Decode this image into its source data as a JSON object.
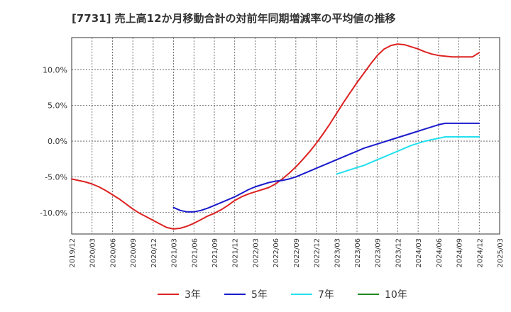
{
  "chart_data": {
    "type": "line",
    "title": "[7731]  売上高12か月移動合計の対前年同期増減率の平均値の推移",
    "xlabel": "",
    "ylabel": "",
    "x_ticks": [
      "2019/12",
      "2020/03",
      "2020/06",
      "2020/09",
      "2020/12",
      "2021/03",
      "2021/06",
      "2021/09",
      "2021/12",
      "2022/03",
      "2022/06",
      "2022/09",
      "2022/12",
      "2023/03",
      "2023/06",
      "2023/09",
      "2023/12",
      "2024/03",
      "2024/06",
      "2024/09",
      "2024/12",
      "2025/03"
    ],
    "y_ticks": [
      -10,
      -5,
      0,
      5,
      10
    ],
    "y_tick_labels": [
      "-10.0%",
      "-5.0%",
      "0.0%",
      "5.0%",
      "10.0%"
    ],
    "ylim": [
      -13,
      14.5
    ],
    "grid": true,
    "legend_position": "bottom",
    "series": [
      {
        "name": "3年",
        "color": "#dd2222",
        "x": [
          "2019/12",
          "2020/01",
          "2020/02",
          "2020/03",
          "2020/04",
          "2020/05",
          "2020/06",
          "2020/07",
          "2020/08",
          "2020/09",
          "2020/10",
          "2020/11",
          "2020/12",
          "2021/01",
          "2021/02",
          "2021/03",
          "2021/04",
          "2021/05",
          "2021/06",
          "2021/07",
          "2021/08",
          "2021/09",
          "2021/10",
          "2021/11",
          "2021/12",
          "2022/01",
          "2022/02",
          "2022/03",
          "2022/04",
          "2022/05",
          "2022/06",
          "2022/07",
          "2022/08",
          "2022/09",
          "2022/10",
          "2022/11",
          "2022/12",
          "2023/01",
          "2023/02",
          "2023/03",
          "2023/04",
          "2023/05",
          "2023/06",
          "2023/07",
          "2023/08",
          "2023/09",
          "2023/10",
          "2023/11",
          "2023/12",
          "2024/01",
          "2024/02",
          "2024/03",
          "2024/04",
          "2024/05",
          "2024/06",
          "2024/07",
          "2024/08",
          "2024/09",
          "2024/10",
          "2024/11",
          "2024/12"
        ],
        "values": [
          -5.3,
          -5.5,
          -5.7,
          -6.0,
          -6.4,
          -6.9,
          -7.5,
          -8.1,
          -8.8,
          -9.5,
          -10.1,
          -10.6,
          -11.1,
          -11.6,
          -12.1,
          -12.3,
          -12.2,
          -11.9,
          -11.5,
          -11.0,
          -10.5,
          -10.1,
          -9.6,
          -9.0,
          -8.3,
          -7.8,
          -7.4,
          -7.1,
          -6.8,
          -6.5,
          -6.0,
          -5.3,
          -4.5,
          -3.6,
          -2.6,
          -1.5,
          -0.3,
          1.0,
          2.4,
          3.9,
          5.4,
          6.8,
          8.2,
          9.5,
          10.8,
          12.0,
          12.9,
          13.4,
          13.6,
          13.5,
          13.2,
          12.9,
          12.5,
          12.2,
          12.0,
          11.9,
          11.8,
          11.8,
          11.8,
          11.8,
          12.4
        ]
      },
      {
        "name": "5年",
        "color": "#1a1acc",
        "x": [
          "2021/03",
          "2021/04",
          "2021/05",
          "2021/06",
          "2021/07",
          "2021/08",
          "2021/09",
          "2021/10",
          "2021/11",
          "2021/12",
          "2022/01",
          "2022/02",
          "2022/03",
          "2022/04",
          "2022/05",
          "2022/06",
          "2022/07",
          "2022/08",
          "2022/09",
          "2022/10",
          "2022/11",
          "2022/12",
          "2023/01",
          "2023/02",
          "2023/03",
          "2023/04",
          "2023/05",
          "2023/06",
          "2023/07",
          "2023/08",
          "2023/09",
          "2023/10",
          "2023/11",
          "2023/12",
          "2024/01",
          "2024/02",
          "2024/03",
          "2024/04",
          "2024/05",
          "2024/06",
          "2024/07",
          "2024/08",
          "2024/09",
          "2024/10",
          "2024/11",
          "2024/12"
        ],
        "values": [
          -9.3,
          -9.7,
          -9.9,
          -9.9,
          -9.7,
          -9.4,
          -9.0,
          -8.6,
          -8.2,
          -7.8,
          -7.3,
          -6.8,
          -6.4,
          -6.1,
          -5.8,
          -5.6,
          -5.5,
          -5.3,
          -5.0,
          -4.6,
          -4.2,
          -3.8,
          -3.4,
          -3.0,
          -2.6,
          -2.2,
          -1.8,
          -1.4,
          -1.0,
          -0.7,
          -0.4,
          -0.1,
          0.2,
          0.5,
          0.8,
          1.1,
          1.4,
          1.7,
          2.0,
          2.3,
          2.5,
          2.5,
          2.5,
          2.5,
          2.5,
          2.5
        ]
      },
      {
        "name": "7年",
        "color": "#22e0ee",
        "x": [
          "2023/03",
          "2023/04",
          "2023/05",
          "2023/06",
          "2023/07",
          "2023/08",
          "2023/09",
          "2023/10",
          "2023/11",
          "2023/12",
          "2024/01",
          "2024/02",
          "2024/03",
          "2024/04",
          "2024/05",
          "2024/06",
          "2024/07",
          "2024/08",
          "2024/09",
          "2024/10",
          "2024/11",
          "2024/12"
        ],
        "values": [
          -4.6,
          -4.3,
          -4.0,
          -3.7,
          -3.4,
          -3.0,
          -2.6,
          -2.2,
          -1.8,
          -1.4,
          -1.0,
          -0.6,
          -0.3,
          0.0,
          0.2,
          0.4,
          0.6,
          0.6,
          0.6,
          0.6,
          0.6,
          0.6
        ]
      },
      {
        "name": "10年",
        "color": "#228822",
        "x": [],
        "values": []
      }
    ]
  }
}
